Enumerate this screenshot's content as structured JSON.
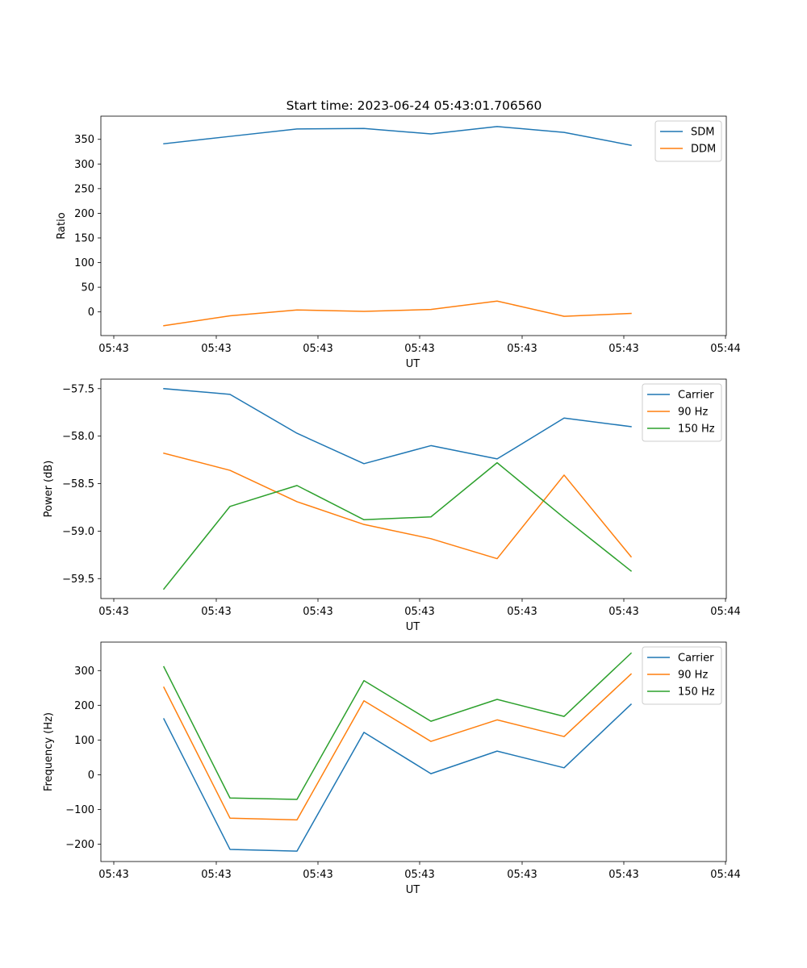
{
  "figure": {
    "title": "Start time: 2023-06-24 05:43:01.706560"
  },
  "chart_data": [
    {
      "type": "line",
      "title": "Start time: 2023-06-24 05:43:01.706560",
      "xlabel": "UT",
      "ylabel": "Ratio",
      "x_tick_labels": [
        "05:43",
        "05:43",
        "05:43",
        "05:43",
        "05:43",
        "05:43",
        "05:44"
      ],
      "y_ticks": [
        0,
        50,
        100,
        150,
        200,
        250,
        300,
        350
      ],
      "ylim": [
        -48,
        397
      ],
      "grid": false,
      "legend_position": "upper right",
      "series": [
        {
          "name": "SDM",
          "color": "#1f77b4",
          "values": [
            341,
            356,
            371,
            372,
            361,
            376,
            364,
            338
          ]
        },
        {
          "name": "DDM",
          "color": "#ff7f0e",
          "values": [
            -28,
            -8,
            4,
            1,
            5,
            22,
            -9,
            -3
          ]
        }
      ]
    },
    {
      "type": "line",
      "title": "",
      "xlabel": "UT",
      "ylabel": "Power (dB)",
      "x_tick_labels": [
        "05:43",
        "05:43",
        "05:43",
        "05:43",
        "05:43",
        "05:43",
        "05:44"
      ],
      "y_ticks": [
        -57.5,
        -58.0,
        -58.5,
        -59.0,
        -59.5
      ],
      "y_tick_labels": [
        "−57.5",
        "−58.0",
        "−58.5",
        "−59.0",
        "−59.5"
      ],
      "ylim": [
        -59.71,
        -57.4
      ],
      "grid": false,
      "legend_position": "upper right",
      "series": [
        {
          "name": "Carrier",
          "color": "#1f77b4",
          "values": [
            -57.5,
            -57.56,
            -57.97,
            -58.29,
            -58.1,
            -58.24,
            -57.81,
            -57.9
          ]
        },
        {
          "name": "90 Hz",
          "color": "#ff7f0e",
          "values": [
            -58.18,
            -58.36,
            -58.69,
            -58.93,
            -59.08,
            -59.29,
            -58.41,
            -59.27
          ]
        },
        {
          "name": "150 Hz",
          "color": "#2ca02c",
          "values": [
            -59.61,
            -58.74,
            -58.52,
            -58.88,
            -58.85,
            -58.28,
            -58.86,
            -59.42
          ]
        }
      ]
    },
    {
      "type": "line",
      "title": "",
      "xlabel": "UT",
      "ylabel": "Frequency (Hz)",
      "x_tick_labels": [
        "05:43",
        "05:43",
        "05:43",
        "05:43",
        "05:43",
        "05:43",
        "05:44"
      ],
      "y_ticks": [
        -200,
        -100,
        0,
        100,
        200,
        300
      ],
      "y_tick_labels": [
        "−200",
        "−100",
        "0",
        "100",
        "200",
        "300"
      ],
      "ylim": [
        -250,
        382
      ],
      "grid": false,
      "legend_position": "upper right",
      "series": [
        {
          "name": "Carrier",
          "color": "#1f77b4",
          "values": [
            161,
            -215,
            -220,
            122,
            3,
            68,
            20,
            203
          ]
        },
        {
          "name": "90 Hz",
          "color": "#ff7f0e",
          "values": [
            252,
            -125,
            -130,
            213,
            96,
            158,
            110,
            290
          ]
        },
        {
          "name": "150 Hz",
          "color": "#2ca02c",
          "values": [
            311,
            -67,
            -71,
            271,
            154,
            217,
            168,
            350
          ]
        }
      ]
    }
  ]
}
